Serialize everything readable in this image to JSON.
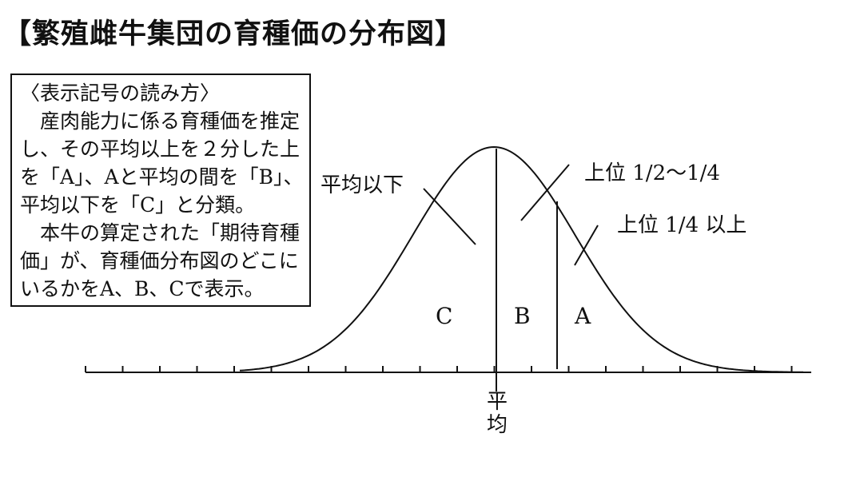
{
  "title": "【繁殖雌牛集団の育種価の分布図】",
  "legend": {
    "lines": [
      "〈表示記号の読み方〉",
      "　産肉能力に係る育種価を推定",
      "し、その平均以上を２分した上",
      "を「A」、Aと平均の間を「B」、",
      "平均以下を「C」と分類。",
      "　本牛の算定された「期待育種",
      "価」が、育種価分布図のどこに",
      "いるかをA、B、Cで表示。"
    ]
  },
  "diagram": {
    "label_below_average": "平均以下",
    "label_top_half_quarter": "上位 1/2〜1/4",
    "label_top_quarter": "上位 1/4 以上",
    "region_c": "C",
    "region_b": "B",
    "region_a": "A",
    "mean_label_line1": "平",
    "mean_label_line2": "均"
  }
}
